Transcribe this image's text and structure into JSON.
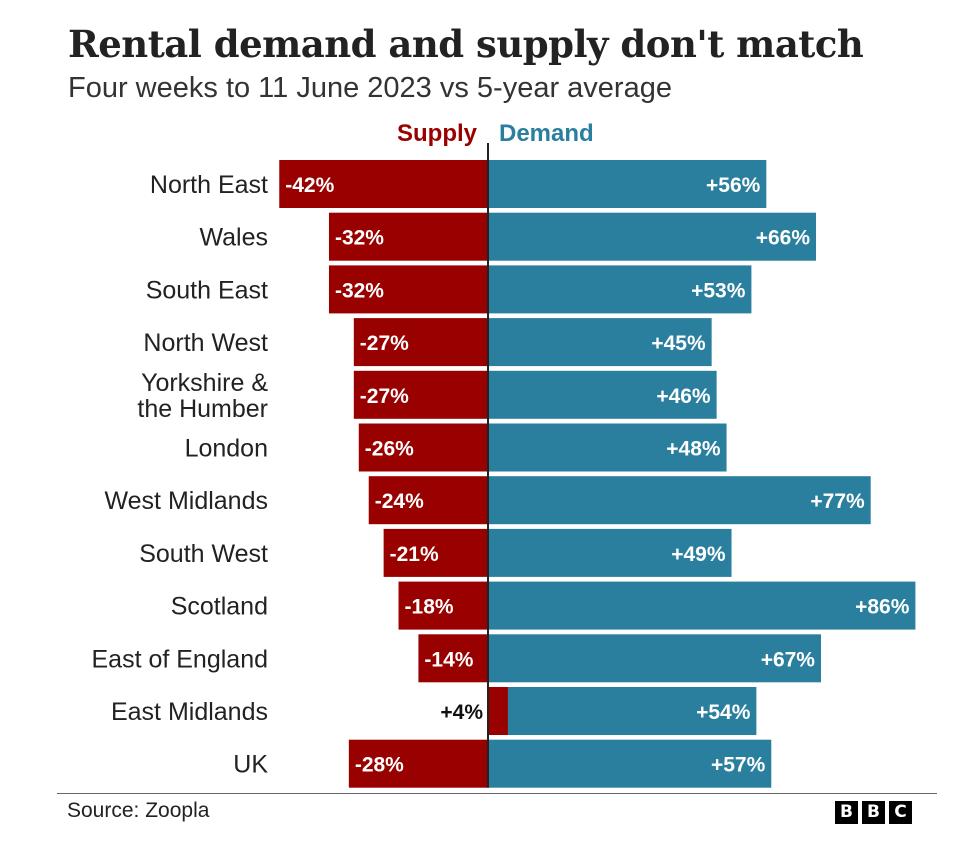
{
  "title": "Rental demand and supply don't match",
  "subtitle": "Four weeks to 11 June 2023 vs 5-year average",
  "source": "Source: Zoopla",
  "logo": [
    "B",
    "B",
    "C"
  ],
  "colors": {
    "supply": "#990000",
    "demand": "#2a7f9e",
    "axis": "#222222"
  },
  "chart_data": {
    "type": "bar",
    "orientation": "horizontal",
    "categories": [
      "North East",
      "Wales",
      "South East",
      "North West",
      "Yorkshire &\nthe Humber",
      "London",
      "West Midlands",
      "South West",
      "Scotland",
      "East of England",
      "East Midlands",
      "UK"
    ],
    "series": [
      {
        "name": "Supply",
        "values": [
          -42,
          -32,
          -32,
          -27,
          -27,
          -26,
          -24,
          -21,
          -18,
          -14,
          4,
          -28
        ],
        "labels": [
          "-42%",
          "-32%",
          "-32%",
          "-27%",
          "-27%",
          "-26%",
          "-24%",
          "-21%",
          "-18%",
          "-14%",
          "+4%",
          "-28%"
        ]
      },
      {
        "name": "Demand",
        "values": [
          56,
          66,
          53,
          45,
          46,
          48,
          77,
          49,
          86,
          67,
          54,
          57
        ],
        "labels": [
          "+56%",
          "+66%",
          "+53%",
          "+45%",
          "+46%",
          "+48%",
          "+77%",
          "+49%",
          "+86%",
          "+67%",
          "+54%",
          "+57%"
        ]
      }
    ],
    "xlim": [
      -43,
      86
    ],
    "legend": "top",
    "grid": false
  }
}
